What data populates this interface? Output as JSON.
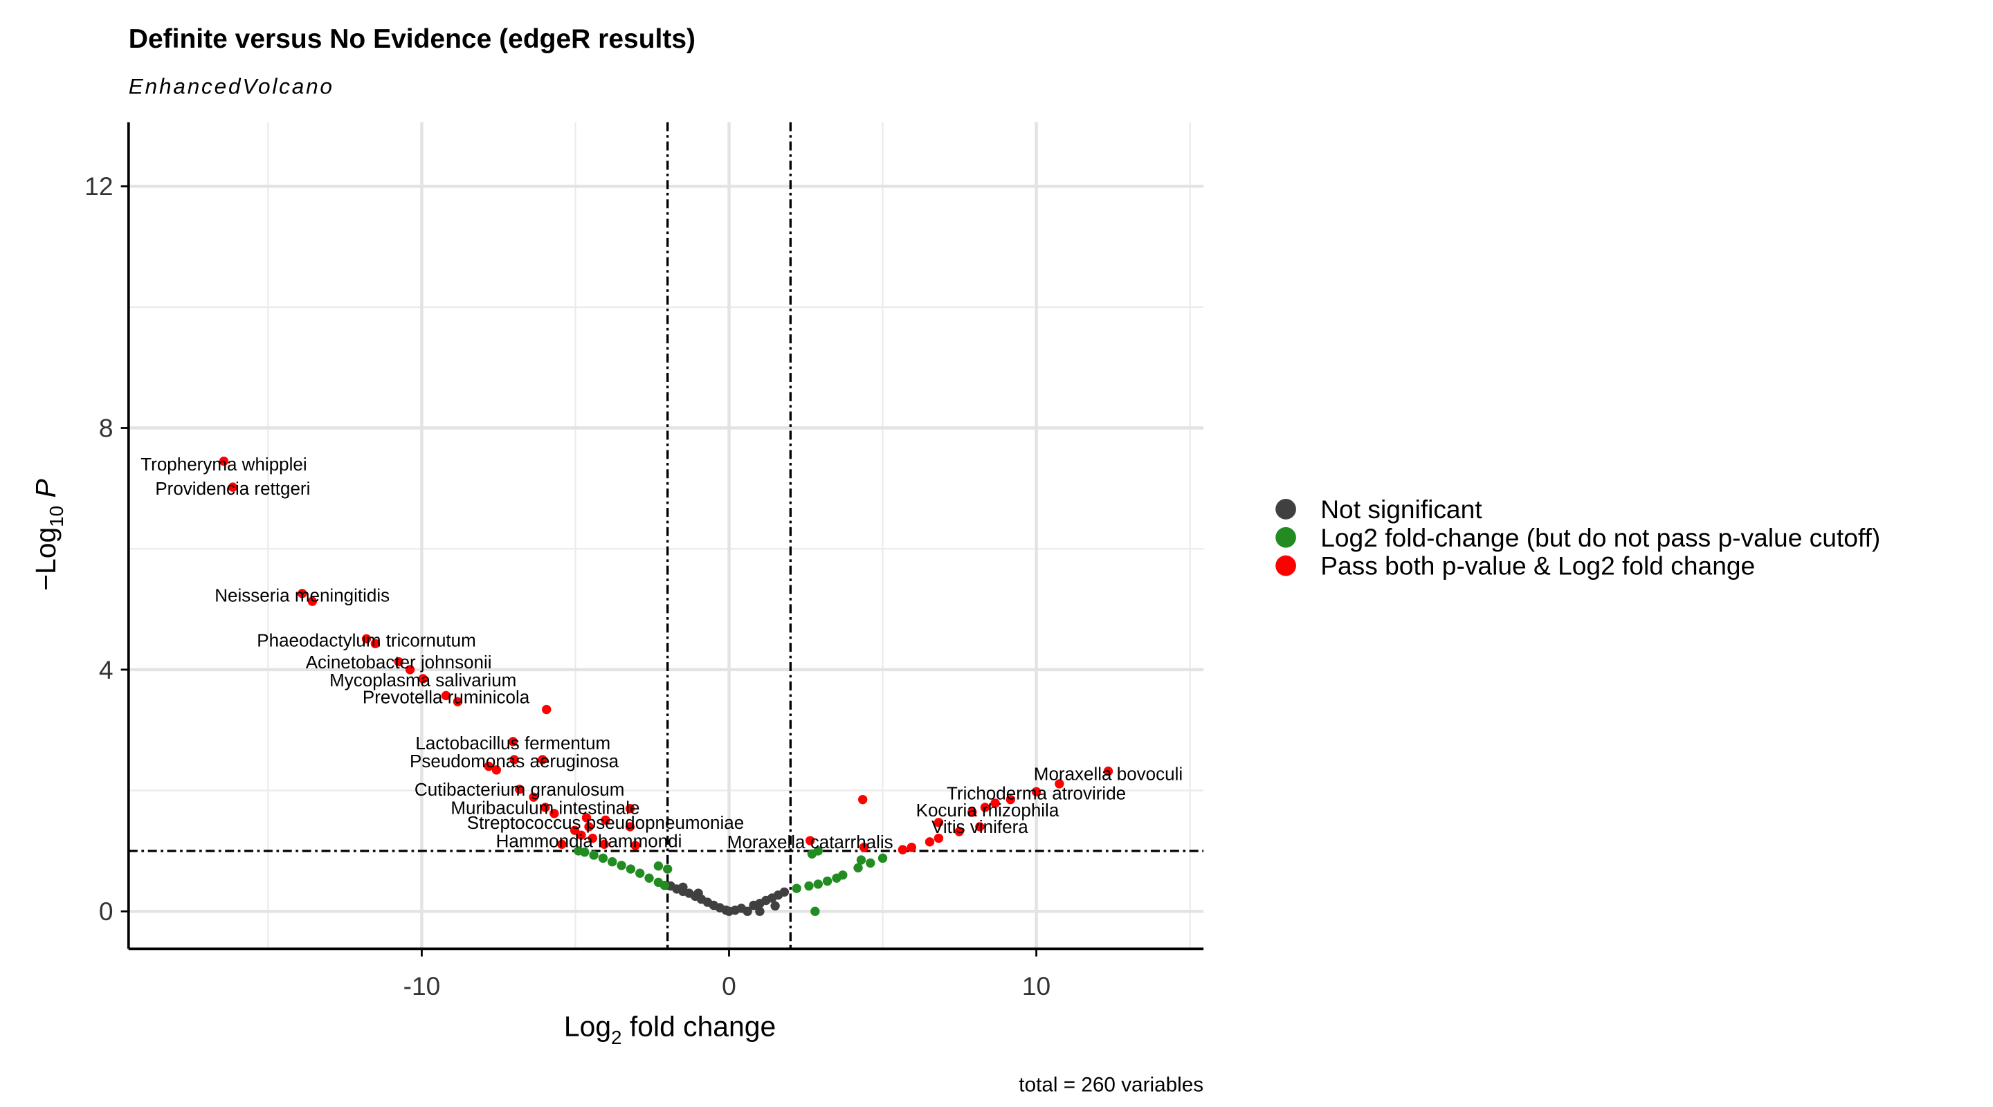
{
  "chart_data": {
    "type": "scatter",
    "title": "Definite versus No Evidence (edgeR results)",
    "subtitle": "EnhancedVolcano",
    "xlabel": [
      "Log",
      "2",
      " fold change"
    ],
    "ylabel": [
      "−Log",
      "10",
      " P"
    ],
    "caption": "total = 260 variables",
    "xlim": [
      -19.54,
      15.44
    ],
    "ylim": [
      -0.62,
      13.06
    ],
    "xticks": [
      -10,
      0,
      10
    ],
    "yticks": [
      0,
      4,
      8,
      12
    ],
    "xminor": [
      -15,
      -5,
      5,
      15
    ],
    "yminor": [
      2,
      6,
      10
    ],
    "grid": true,
    "legend": "right",
    "cutoffs": {
      "fc": [
        -2,
        2
      ],
      "p": 1
    },
    "series": [
      {
        "name": "Not significant",
        "color": "#404040",
        "x": [
          -1.9,
          -1.7,
          -1.5,
          -1.3,
          -1.1,
          -0.9,
          -0.7,
          -0.5,
          -0.3,
          -0.1,
          0,
          0.2,
          0.4,
          0.6,
          0.8,
          1.0,
          1.2,
          1.4,
          1.6,
          1.8,
          1.5,
          1.0,
          -1.5,
          -1.0
        ],
        "y": [
          0.42,
          0.37,
          0.33,
          0.3,
          0.25,
          0.2,
          0.15,
          0.1,
          0.06,
          0.02,
          0,
          0.02,
          0.05,
          0.0,
          0.1,
          0.13,
          0.18,
          0.22,
          0.27,
          0.32,
          0.09,
          0.0,
          0.4,
          0.3
        ]
      },
      {
        "name": "Log2 fold-change (but do not pass p-value cutoff)",
        "color": "#228b22",
        "x": [
          -4.9,
          -4.7,
          -4.4,
          -4.1,
          -3.8,
          -3.5,
          -3.2,
          -2.9,
          -2.6,
          -2.3,
          -2.1,
          -2.3,
          -2.0,
          2.2,
          2.6,
          2.9,
          3.2,
          3.5,
          3.7,
          4.2,
          4.6,
          5.0,
          2.7,
          2.9,
          2.8,
          4.3
        ],
        "y": [
          1.0,
          0.98,
          0.93,
          0.88,
          0.82,
          0.76,
          0.7,
          0.63,
          0.55,
          0.48,
          0.43,
          0.75,
          0.7,
          0.38,
          0.42,
          0.45,
          0.5,
          0.55,
          0.6,
          0.72,
          0.8,
          0.88,
          0.95,
          1.0,
          0.0,
          0.85
        ]
      },
      {
        "name": "Pass both p-value & Log2 fold change",
        "color": "#ff0000",
        "x": [
          -16.44,
          -16.15,
          -13.89,
          -13.56,
          -11.8,
          -11.51,
          -10.75,
          -10.38,
          -9.96,
          -9.21,
          -8.83,
          -5.94,
          -7.03,
          -7.82,
          -7.57,
          -6.99,
          -6.07,
          -6.82,
          -6.36,
          -5.98,
          -5.69,
          -4.64,
          -4.02,
          -3.22,
          -4.56,
          -5.02,
          -4.81,
          -4.44,
          -3.22,
          -5.44,
          -4.06,
          -3.05,
          12.34,
          10.75,
          10.0,
          9.16,
          8.66,
          8.33,
          7.91,
          4.35,
          6.82,
          7.49,
          8.16,
          6.82,
          6.53,
          2.64,
          4.39,
          5.65,
          5.94
        ],
        "y": [
          7.45,
          7.02,
          5.26,
          5.13,
          4.51,
          4.43,
          4.13,
          4.0,
          3.85,
          3.57,
          3.47,
          3.34,
          2.81,
          2.4,
          2.34,
          2.51,
          2.51,
          2.02,
          1.89,
          1.72,
          1.62,
          1.55,
          1.51,
          1.7,
          1.4,
          1.34,
          1.26,
          1.21,
          1.4,
          1.11,
          1.11,
          1.09,
          2.32,
          2.11,
          1.98,
          1.85,
          1.79,
          1.72,
          1.64,
          1.85,
          1.47,
          1.32,
          1.4,
          1.21,
          1.15,
          1.17,
          1.06,
          1.02,
          1.06
        ]
      }
    ],
    "annotations": [
      {
        "text": "Tropheryma whipplei",
        "x": -16.44,
        "y": 7.4
      },
      {
        "text": "Providencia rettgeri",
        "x": -16.15,
        "y": 7.0
      },
      {
        "text": "Neisseria meningitidis",
        "x": -13.89,
        "y": 5.23
      },
      {
        "text": "Phaeodactylum tricornutum",
        "x": -11.8,
        "y": 4.49
      },
      {
        "text": "Acinetobacter johnsonii",
        "x": -10.75,
        "y": 4.13
      },
      {
        "text": "Mycoplasma salivarium",
        "x": -9.96,
        "y": 3.83
      },
      {
        "text": "Prevotella ruminicola",
        "x": -9.21,
        "y": 3.55
      },
      {
        "text": "Lactobacillus fermentum",
        "x": -7.03,
        "y": 2.79
      },
      {
        "text": "Pseudomonas aeruginosa",
        "x": -6.99,
        "y": 2.49
      },
      {
        "text": "Cutibacterium granulosum",
        "x": -6.82,
        "y": 2.02
      },
      {
        "text": "Muribaculum intestinale",
        "x": -5.98,
        "y": 1.72
      },
      {
        "text": "Streptococcus pseudopneumoniae",
        "x": -4.02,
        "y": 1.47
      },
      {
        "text": "Hammondia hammondi",
        "x": -4.56,
        "y": 1.17
      },
      {
        "text": "Moraxella catarrhalis",
        "x": 2.64,
        "y": 1.15
      },
      {
        "text": "Moraxella bovoculi",
        "x": 12.34,
        "y": 2.28
      },
      {
        "text": "Trichoderma atroviride",
        "x": 10.0,
        "y": 1.96
      },
      {
        "text": "Kocuria rhizophila",
        "x": 8.41,
        "y": 1.68
      },
      {
        "text": "Vitis vinifera",
        "x": 8.16,
        "y": 1.4
      }
    ]
  }
}
